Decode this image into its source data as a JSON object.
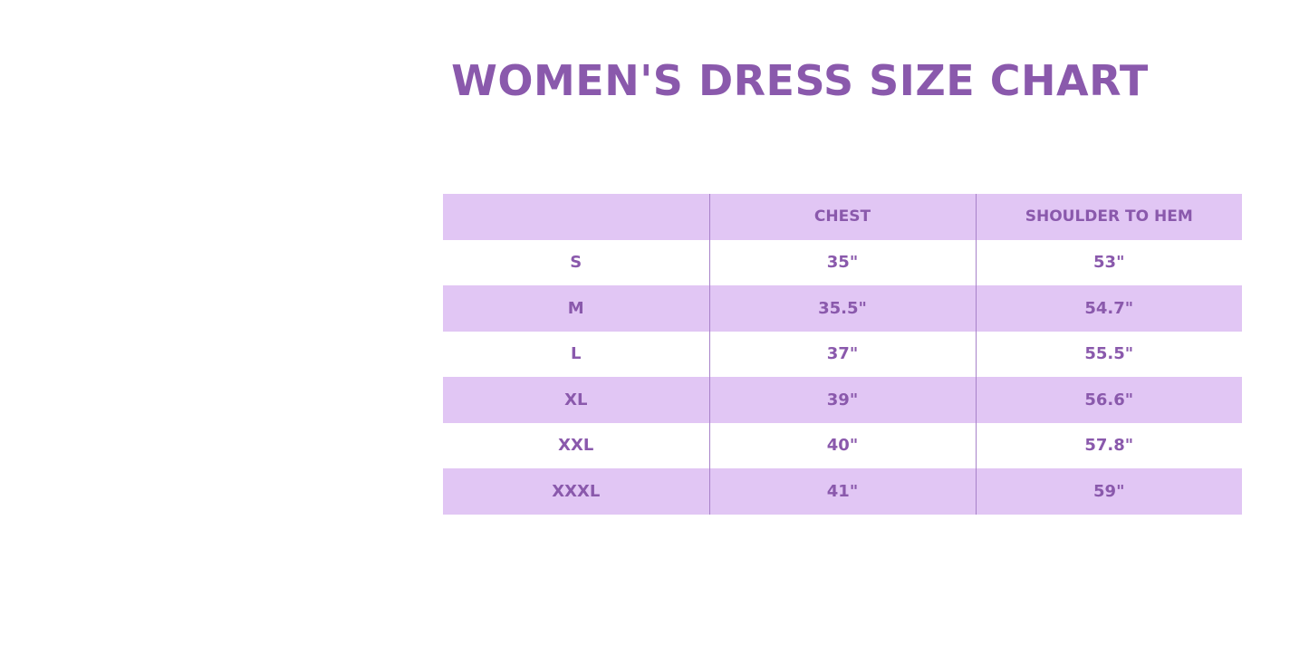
{
  "title": "WOMEN'S DRESS SIZE CHART",
  "table": {
    "headers": [
      "",
      "CHEST",
      "SHOULDER TO HEM"
    ],
    "rows": [
      [
        "S",
        "35\"",
        "53\""
      ],
      [
        "M",
        "35.5\"",
        "54.7\""
      ],
      [
        "L",
        "37\"",
        "55.5\""
      ],
      [
        "XL",
        "39\"",
        "56.6\""
      ],
      [
        "XXL",
        "40\"",
        "57.8\""
      ],
      [
        "XXXL",
        "41\"",
        "59\""
      ]
    ]
  },
  "colors": {
    "accent": "#8a59ac",
    "band": "#e1c6f4",
    "divider": "#a882c9"
  }
}
